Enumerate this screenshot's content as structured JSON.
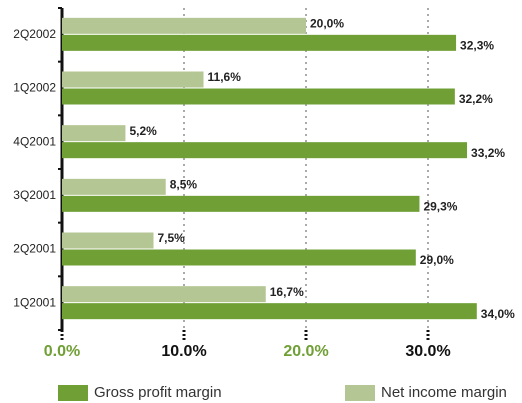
{
  "chart_data": {
    "type": "hbar",
    "categories": [
      "2Q2002",
      "1Q2002",
      "4Q2001",
      "3Q2001",
      "2Q2001",
      "1Q2001"
    ],
    "series": [
      {
        "name": "Gross profit margin",
        "color": "#6f9f35",
        "values": [
          32.3,
          32.2,
          33.2,
          29.3,
          29.0,
          34.0
        ],
        "value_labels": [
          "32,3%",
          "32,2%",
          "33,2%",
          "29,3%",
          "29,0%",
          "34,0%"
        ]
      },
      {
        "name": "Net income margin",
        "color": "#b4c693",
        "values": [
          20.0,
          11.6,
          5.2,
          8.5,
          7.5,
          16.7
        ],
        "value_labels": [
          "20,0%",
          "11,6%",
          "5,2%",
          "8,5%",
          "7,5%",
          "16,7%"
        ]
      }
    ],
    "xlim": [
      0,
      35
    ],
    "xticks": [
      {
        "value": 0,
        "label": "0.0%"
      },
      {
        "value": 10,
        "label": "10.0%"
      },
      {
        "value": 20,
        "label": "20.0%"
      },
      {
        "value": 30,
        "label": "30.0%"
      }
    ],
    "grid": true
  }
}
